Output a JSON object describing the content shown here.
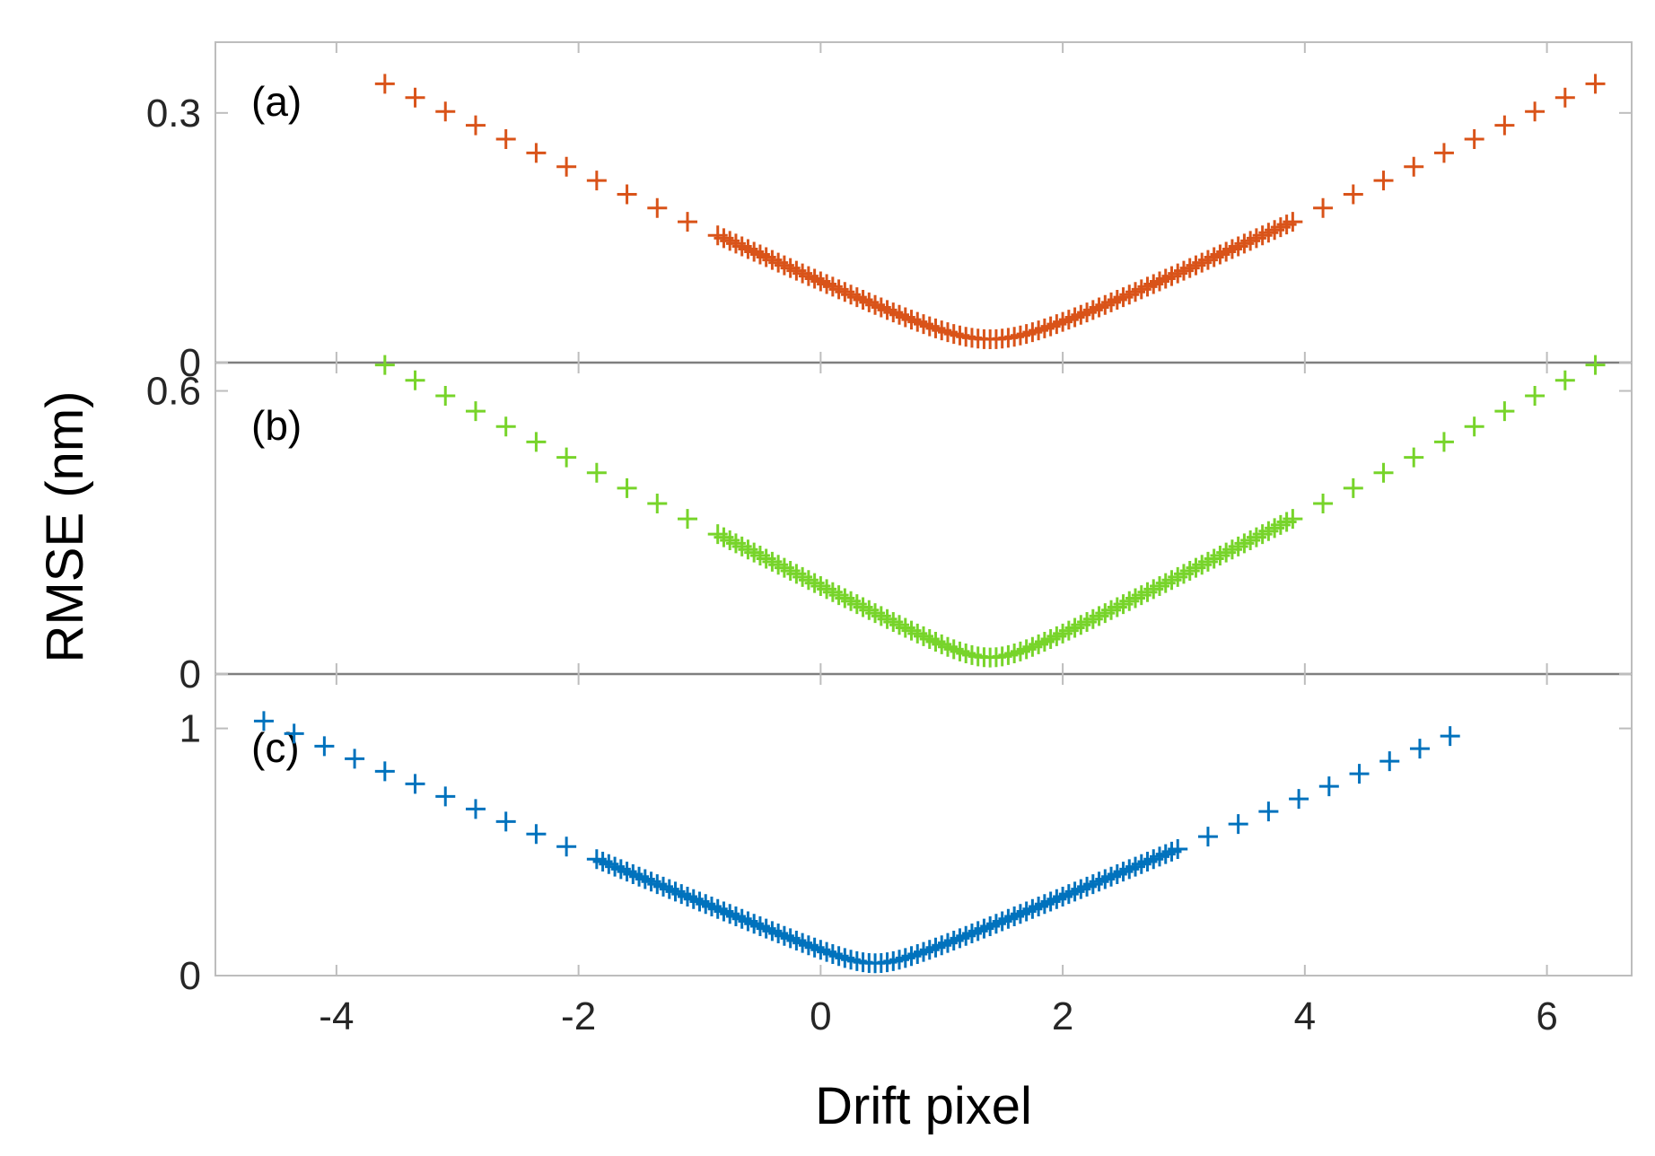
{
  "chart_data": {
    "type": "scatter",
    "xlabel": "Drift pixel",
    "ylabel": "RMSE (nm)",
    "xlim": [
      -5,
      6.7
    ],
    "xticks": [
      -4,
      -2,
      0,
      2,
      4,
      6
    ],
    "xtick_labels": [
      "-4",
      "-2",
      "0",
      "2",
      "4",
      "6"
    ],
    "marker": "+",
    "panels": [
      {
        "label": "(a)",
        "color": "#D95319",
        "ylim": [
          0,
          0.385
        ],
        "yticks": [
          0,
          0.3
        ],
        "ytick_labels": [
          "0",
          "0.3"
        ],
        "coarse_step": 0.25,
        "fine_step": 0.05,
        "series": [
          {
            "from": -3.6,
            "to": 6.4,
            "center": 1.4,
            "vmin": 0.028,
            "vedge": 0.335,
            "curvature": 0.5
          }
        ]
      },
      {
        "label": "(b)",
        "color": "#77D42A",
        "ylim": [
          0,
          0.66
        ],
        "yticks": [
          0,
          0.6
        ],
        "ytick_labels": [
          "0",
          "0.6"
        ],
        "coarse_step": 0.25,
        "fine_step": 0.05,
        "series": [
          {
            "from": -3.6,
            "to": 6.4,
            "center": 1.4,
            "vmin": 0.035,
            "vedge": 0.655,
            "curvature": 0.5
          }
        ]
      },
      {
        "label": "(c)",
        "color": "#0072BD",
        "ylim": [
          0,
          1.22
        ],
        "yticks": [
          0,
          1
        ],
        "ytick_labels": [
          "0",
          "1"
        ],
        "coarse_step": 0.25,
        "fine_step": 0.05,
        "series": [
          {
            "from": -4.6,
            "to": 5.4,
            "center": 0.45,
            "vmin": 0.05,
            "vedge": 1.03,
            "curvature": 0.5
          }
        ]
      }
    ]
  }
}
